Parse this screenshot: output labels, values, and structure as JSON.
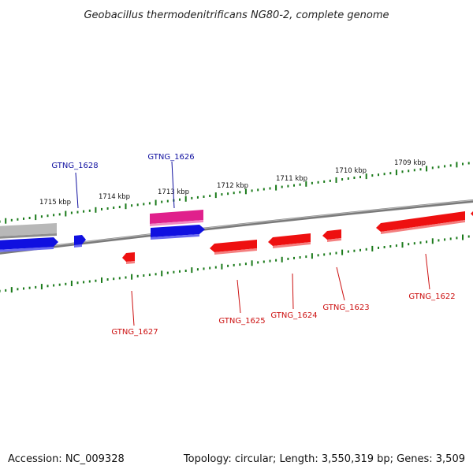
{
  "title": "Geobacillus thermodenitrificans NG80-2, complete genome",
  "footer": {
    "accession": "Accession: NC_009328",
    "stats": "Topology: circular; Length: 3,550,319 bp; Genes: 3,509"
  },
  "colors": {
    "forward": "#1010e0",
    "reverse": "#ee1010",
    "rna": "#e0208c",
    "unknown": "#b8b8b8",
    "tick": "#1a7a1a",
    "backbone": "#7a7a7a",
    "forward_label": "#1010a0",
    "reverse_label": "#cc1010"
  },
  "scale_labels": [
    "1715 kbp",
    "1714 kbp",
    "1713 kbp",
    "1712 kbp",
    "1711 kbp",
    "1710 kbp",
    "1709 kbp"
  ],
  "gene_labels": {
    "forward": [
      "GTNG_1628",
      "GTNG_1626"
    ],
    "reverse": [
      "GTNG_1627",
      "GTNG_1625",
      "GTNG_1624",
      "GTNG_1623",
      "GTNG_1622"
    ]
  }
}
